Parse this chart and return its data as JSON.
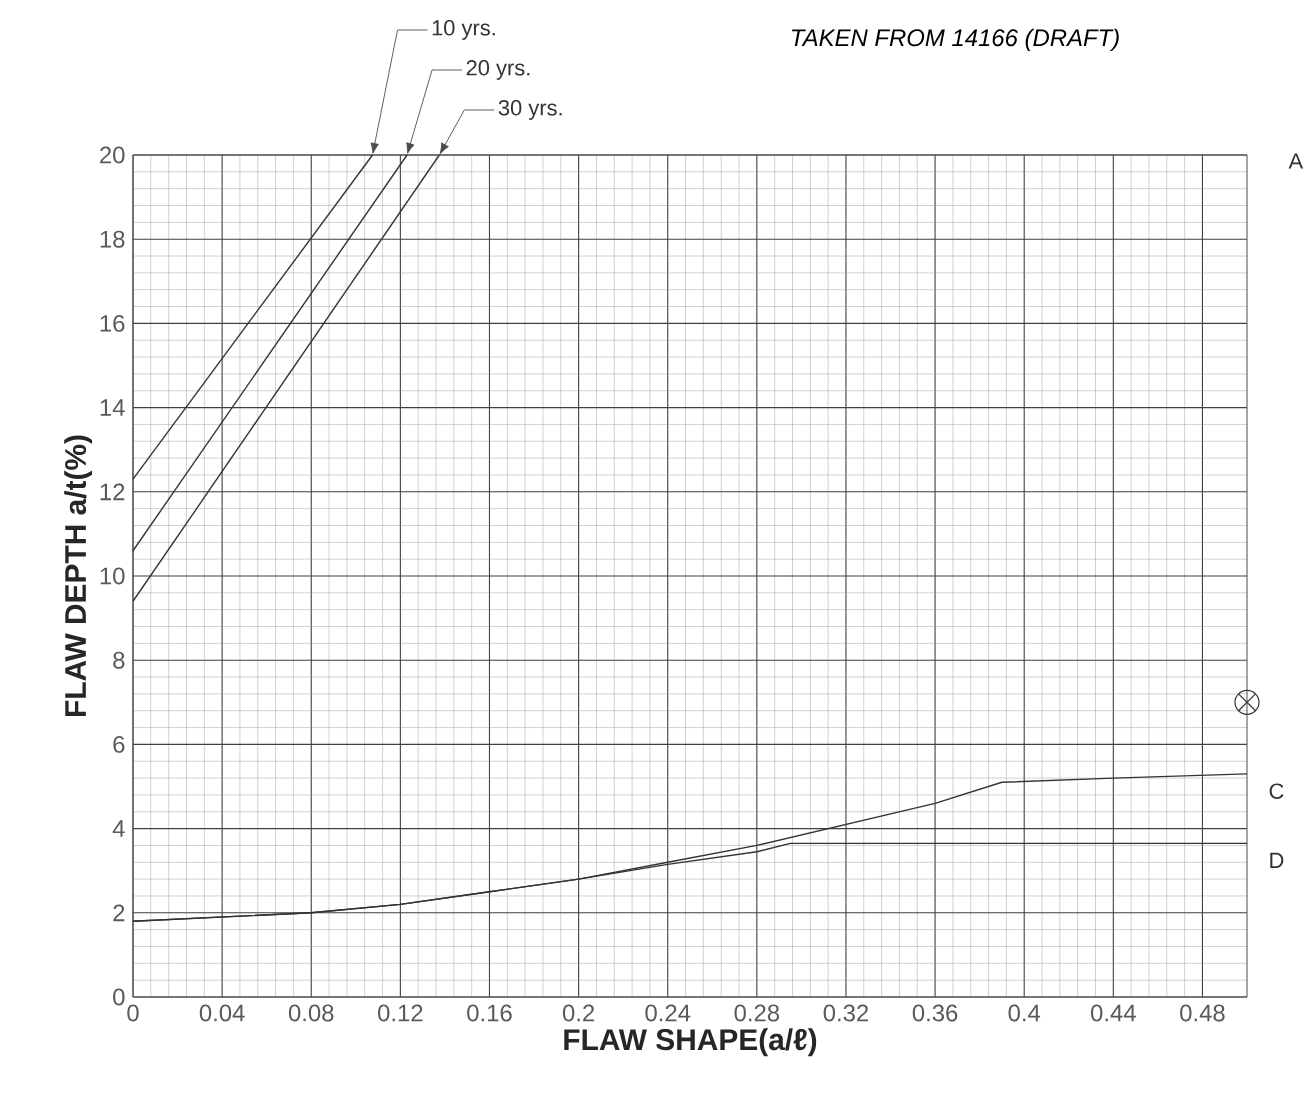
{
  "chart_data": {
    "type": "line",
    "title": "TAKEN FROM 14166 (DRAFT)",
    "xlabel": "FLAW SHAPE(a/ℓ)",
    "ylabel": "FLAW DEPTH a/t(%)",
    "xlim": [
      0,
      0.5
    ],
    "ylim": [
      0,
      20
    ],
    "xticks": [
      0,
      0.04,
      0.08,
      0.12,
      0.16,
      0.2,
      0.24,
      0.28,
      0.32,
      0.36,
      0.4,
      0.44,
      0.48
    ],
    "yticks": [
      0,
      2,
      4,
      6,
      8,
      10,
      12,
      14,
      16,
      18,
      20
    ],
    "grid": true,
    "annotations": [
      "A"
    ],
    "series": [
      {
        "name": "10 yrs.",
        "color": "#333333",
        "x": [
          0,
          0.1075
        ],
        "values": [
          12.3,
          20
        ]
      },
      {
        "name": "20 yrs.",
        "color": "#333333",
        "x": [
          0,
          0.123
        ],
        "values": [
          10.6,
          20
        ]
      },
      {
        "name": "30 yrs.",
        "color": "#333333",
        "x": [
          0,
          0.1375
        ],
        "values": [
          9.4,
          20
        ]
      },
      {
        "name": "C",
        "color": "#333333",
        "x": [
          0,
          0.04,
          0.08,
          0.12,
          0.16,
          0.2,
          0.24,
          0.28,
          0.32,
          0.36,
          0.39,
          0.44,
          0.5
        ],
        "values": [
          1.8,
          1.9,
          2.0,
          2.2,
          2.5,
          2.8,
          3.2,
          3.6,
          4.1,
          4.6,
          5.1,
          5.2,
          5.3
        ]
      },
      {
        "name": "D",
        "color": "#333333",
        "x": [
          0,
          0.04,
          0.08,
          0.12,
          0.16,
          0.2,
          0.24,
          0.28,
          0.295,
          0.5
        ],
        "values": [
          1.8,
          1.9,
          2.0,
          2.2,
          2.5,
          2.8,
          3.15,
          3.45,
          3.65,
          3.65
        ]
      },
      {
        "type": "scatter",
        "marker": "cross",
        "color": "#333333",
        "x": [
          0.5
        ],
        "values": [
          7.0
        ]
      }
    ]
  }
}
